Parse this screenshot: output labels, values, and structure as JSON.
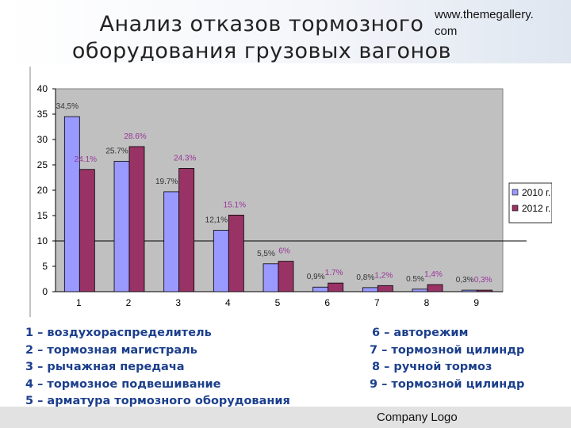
{
  "header": {
    "title_line1": "Анализ отказов тормозного",
    "title_line2": "оборудования грузовых вагонов",
    "website_line1": "www.themegallery.",
    "website_line2": "com"
  },
  "footer": {
    "company_logo": "Company Logo"
  },
  "legend_items": [
    "1 – воздухораспределитель",
    "2 – тормозная магистраль",
    "3 – рычажная передача",
    "4 – тормозное подвешивание",
    "5 – арматура тормозного оборудования"
  ],
  "legend_items_col2": [
    "6 – авторежим",
    "7 – тормозной цилиндр",
    "8 – ручной тормоз",
    "9 – тормозной цилиндр"
  ],
  "chart_data": {
    "type": "bar",
    "categories": [
      "1",
      "2",
      "3",
      "4",
      "5",
      "6",
      "7",
      "8",
      "9"
    ],
    "series": [
      {
        "name": "2010 г.",
        "values": [
          34.5,
          25.7,
          19.7,
          12.1,
          5.5,
          0.9,
          0.8,
          0.5,
          0.3
        ],
        "labels": [
          "34,5%",
          "25.7%",
          "19.7%",
          "12,1%",
          "5,5%",
          "0,9%",
          "0,8%",
          "0.5%",
          "0,3%"
        ],
        "color": "#9999ff",
        "label_color": "#333333"
      },
      {
        "name": "2012 г.",
        "values": [
          24.1,
          28.6,
          24.3,
          15.1,
          6,
          1.7,
          1.2,
          1.4,
          0.3
        ],
        "labels": [
          "24.1%",
          "28.6%",
          "24.3%",
          "15.1%",
          "6%",
          "1.7%",
          "1,2%",
          "1,4%",
          "0,3%"
        ],
        "color": "#993366",
        "label_color": "#993399"
      }
    ],
    "y_ticks": [
      "0",
      "5",
      "10",
      "15",
      "20",
      "25",
      "30",
      "35",
      "40"
    ],
    "ylim": [
      0,
      40
    ],
    "plot_background": "#c0c0c0",
    "legend_position": "right"
  }
}
